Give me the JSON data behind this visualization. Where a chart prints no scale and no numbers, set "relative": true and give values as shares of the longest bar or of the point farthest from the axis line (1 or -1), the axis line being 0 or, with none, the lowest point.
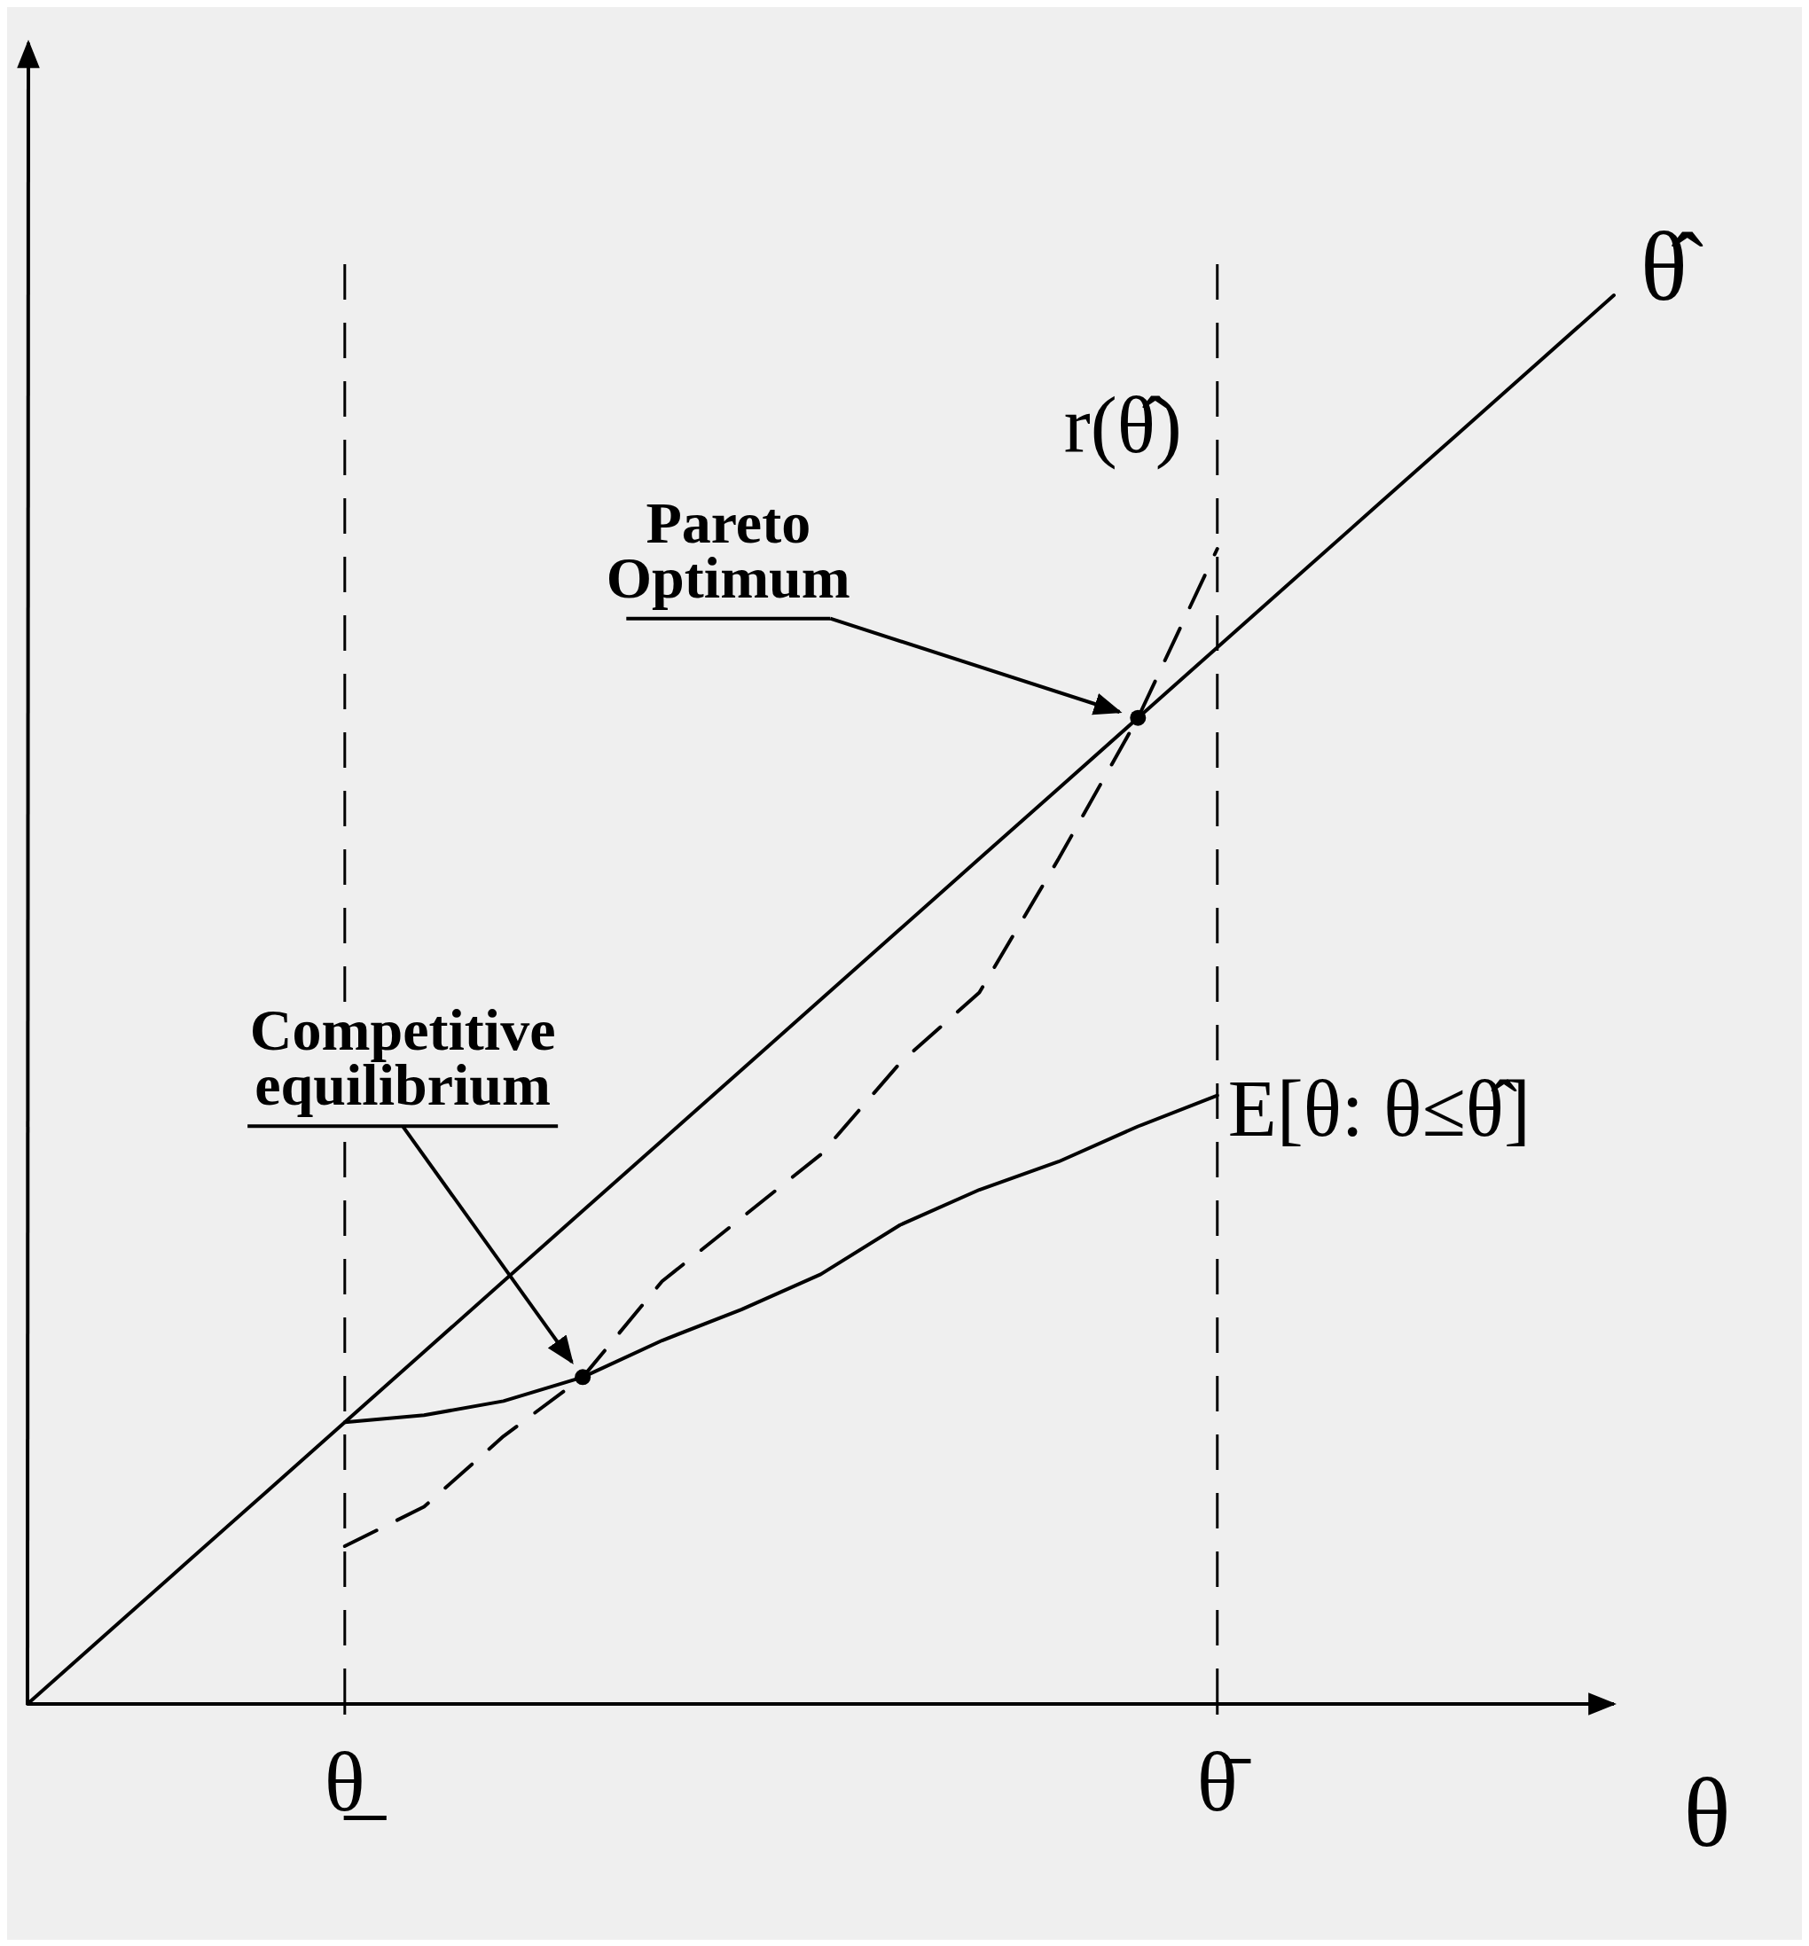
{
  "chart_data": {
    "type": "line",
    "relative": true,
    "xlabel": "θ",
    "grid": "x",
    "categories": [
      null,
      null,
      null,
      null,
      "θ̲",
      null,
      null,
      null,
      null,
      null,
      null,
      null,
      null,
      null,
      null,
      "θ̄",
      null,
      null,
      null,
      null,
      null
    ],
    "series": [
      {
        "name": "θ̂",
        "color": "#000000",
        "line_style": "solid",
        "values": [
          0,
          0.05,
          0.1,
          0.15,
          0.2,
          0.25,
          0.3,
          0.35,
          0.4,
          0.45,
          0.5,
          0.55,
          0.6,
          0.65,
          0.7,
          0.75,
          0.8,
          0.85,
          0.9,
          0.95,
          1
        ]
      },
      {
        "name": "r(θ̂)",
        "color": "#000000",
        "line_style": "dashed",
        "values": [
          null,
          null,
          null,
          null,
          0.112,
          0.14,
          0.19,
          0.232,
          0.3,
          0.345,
          0.39,
          0.455,
          0.505,
          0.6,
          0.7,
          0.82,
          null,
          null,
          null,
          null,
          null
        ]
      },
      {
        "name": "E[θ: θ≤θ̂]",
        "color": "#000000",
        "line_style": "solid",
        "values": [
          null,
          null,
          null,
          null,
          0.2,
          0.205,
          0.215,
          0.232,
          0.258,
          0.28,
          0.305,
          0.34,
          0.365,
          0.385,
          0.41,
          0.432,
          null,
          null,
          null,
          null,
          null
        ]
      }
    ],
    "marker": "none",
    "annotations": [
      "Pareto Optimum",
      "Competitive equilibrium"
    ]
  }
}
